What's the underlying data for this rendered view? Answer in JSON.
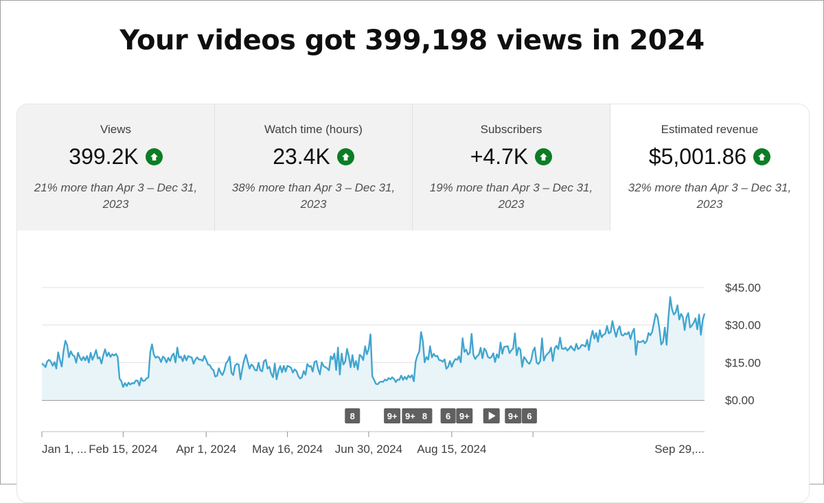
{
  "headline": "Your videos got 399,198 views in 2024",
  "tabs": [
    {
      "label": "Views",
      "value": "399.2K",
      "compare": "21% more than Apr 3 – Dec 31, 2023",
      "active": false
    },
    {
      "label": "Watch time (hours)",
      "value": "23.4K",
      "compare": "38% more than Apr 3 – Dec 31, 2023",
      "active": false
    },
    {
      "label": "Subscribers",
      "value": "+4.7K",
      "compare": "19% more than Apr 3 – Dec 31, 2023",
      "active": false
    },
    {
      "label": "Estimated revenue",
      "value": "$5,001.86",
      "compare": "32% more than Apr 3 – Dec 31, 2023",
      "active": true
    }
  ],
  "colors": {
    "line": "#41a5cf",
    "fill": "#e8f4f8",
    "up": "#0b7d25",
    "marker": "#606060"
  },
  "chart_data": {
    "type": "line",
    "ylim": [
      0,
      45
    ],
    "y_ticks": [
      {
        "v": 45,
        "label": "$45.00"
      },
      {
        "v": 30,
        "label": "$30.00"
      },
      {
        "v": 15,
        "label": "$15.00"
      },
      {
        "v": 0,
        "label": "$0.00"
      }
    ],
    "x_ticks": [
      {
        "i": 0,
        "label": "Jan 1, ..."
      },
      {
        "i": 45,
        "label": "Feb 15, 2024"
      },
      {
        "i": 91,
        "label": "Apr 1, 2024"
      },
      {
        "i": 136,
        "label": "May 16, 2024"
      },
      {
        "i": 181,
        "label": "Jun 30, 2024"
      },
      {
        "i": 227,
        "label": "Aug 15, 2024"
      },
      {
        "i": 272,
        "label": "Sep 29,..."
      }
    ],
    "markers": [
      {
        "i": 172,
        "label": "8"
      },
      {
        "i": 194,
        "label": "9+"
      },
      {
        "i": 204,
        "label": "9+"
      },
      {
        "i": 212,
        "label": "8"
      },
      {
        "i": 225,
        "label": "6"
      },
      {
        "i": 234,
        "label": "9+"
      },
      {
        "i": 249,
        "label": "play"
      },
      {
        "i": 261,
        "label": "9+"
      },
      {
        "i": 270,
        "label": "6"
      }
    ],
    "values": [
      14.6,
      14.1,
      13.2,
      15.5,
      16.1,
      15.3,
      13.7,
      15.2,
      12.6,
      19.1,
      16.0,
      13.4,
      19.7,
      23.7,
      22.0,
      17.1,
      19.5,
      18.0,
      17.6,
      14.9,
      18.9,
      17.1,
      15.9,
      17.3,
      15.9,
      17.6,
      15.0,
      18.9,
      16.1,
      17.9,
      20.0,
      16.6,
      17.1,
      14.6,
      17.9,
      20.3,
      17.6,
      19.0,
      17.3,
      18.3,
      17.8,
      18.5,
      17.2,
      8.6,
      7.6,
      5.2,
      6.8,
      5.6,
      7.0,
      6.2,
      6.8,
      6.6,
      7.8,
      7.8,
      5.8,
      8.9,
      7.6,
      7.8,
      8.7,
      9.0,
      19.1,
      22.3,
      18.2,
      16.9,
      17.4,
      16.9,
      15.2,
      17.4,
      16.8,
      15.0,
      16.9,
      15.6,
      17.7,
      18.6,
      15.0,
      21.0,
      17.0,
      17.4,
      15.5,
      17.9,
      15.9,
      17.6,
      17.3,
      17.0,
      14.5,
      16.2,
      17.1,
      16.2,
      16.2,
      15.7,
      17.7,
      16.1,
      14.2,
      14.0,
      12.6,
      12.0,
      9.4,
      9.7,
      12.7,
      11.0,
      10.0,
      11.8,
      14.8,
      15.6,
      17.4,
      10.9,
      10.0,
      13.8,
      14.5,
      14.2,
      8.3,
      12.6,
      16.0,
      18.2,
      15.2,
      12.6,
      14.2,
      13.6,
      12.0,
      11.8,
      14.9,
      11.9,
      11.5,
      15.5,
      16.1,
      12.6,
      13.3,
      10.6,
      9.1,
      14.6,
      8.3,
      11.8,
      13.6,
      11.1,
      13.7,
      11.4,
      13.7,
      13.4,
      12.9,
      11.0,
      12.3,
      11.6,
      9.6,
      8.6,
      9.1,
      11.6,
      10.1,
      14.4,
      13.4,
      13.6,
      11.4,
      15.2,
      15.6,
      12.4,
      10.3,
      15.1,
      13.6,
      13.2,
      12.7,
      11.9,
      17.5,
      16.3,
      18.6,
      12.0,
      21.0,
      10.2,
      18.6,
      14.2,
      15.3,
      20.5,
      17.5,
      13.1,
      18.0,
      13.2,
      15.6,
      12.2,
      18.1,
      17.5,
      16.0,
      21.5,
      18.3,
      20.5,
      26.3,
      9.5,
      8.1,
      6.5,
      6.3,
      7.1,
      7.4,
      7.3,
      8.2,
      7.8,
      8.8,
      8.3,
      9.1,
      8.5,
      7.2,
      8.2,
      8.1,
      9.8,
      8.1,
      9.3,
      8.3,
      9.8,
      9.0,
      10.0,
      7.5,
      15.4,
      17.8,
      19.4,
      27.2,
      23.6,
      15.1,
      17.2,
      16.2,
      21.5,
      17.1,
      18.5,
      17.5,
      17.7,
      16.0,
      15.9,
      15.3,
      16.3,
      12.5,
      13.3,
      15.6,
      13.3,
      15.2,
      16.4,
      16.1,
      17.5,
      15.1,
      24.7,
      19.3,
      20.2,
      18.2,
      18.9,
      26.5,
      18.1,
      16.4,
      17.5,
      18.1,
      20.9,
      16.7,
      20.6,
      19.7,
      17.3,
      16.8,
      17.2,
      18.7,
      15.2,
      18.3,
      16.9,
      23.0,
      18.5,
      21.3,
      21.4,
      21.6,
      18.8,
      19.9,
      20.7,
      26.7,
      17.9,
      21.0,
      20.2,
      13.3,
      17.2,
      16.3,
      15.1,
      14.5,
      16.0,
      19.6,
      21.0,
      15.0,
      14.4,
      15.6,
      24.7,
      15.8,
      17.6,
      18.4,
      19.2,
      21.0,
      15.6,
      20.7,
      21.7,
      20.4,
      25.0,
      20.6,
      20.4,
      21.0,
      19.8,
      20.5,
      21.6,
      20.5,
      19.8,
      22.5,
      20.4,
      20.9,
      22.1,
      21.9,
      21.4,
      24.1,
      20.0,
      24.8,
      27.7,
      24.6,
      26.8,
      23.3,
      28.0,
      25.1,
      26.1,
      26.5,
      29.6,
      26.7,
      27.2,
      31.6,
      28.2,
      25.3,
      28.2,
      29.5,
      26.1,
      25.8,
      26.7,
      26.3,
      27.2,
      24.4,
      27.1,
      28.5,
      18.1,
      23.6,
      23.1,
      23.3,
      23.8,
      22.7,
      23.7,
      26.8,
      25.9,
      27.2,
      30.9,
      34.5,
      33.2,
      28.5,
      22.2,
      23.2,
      29.0,
      22.1,
      32.8,
      41.2,
      36.3,
      34.2,
      35.0,
      37.9,
      32.2,
      34.5,
      33.2,
      28.0,
      33.1,
      34.8,
      29.0,
      29.8,
      30.9,
      32.7,
      28.3,
      34.2,
      26.1,
      32.1,
      34.6
    ]
  }
}
